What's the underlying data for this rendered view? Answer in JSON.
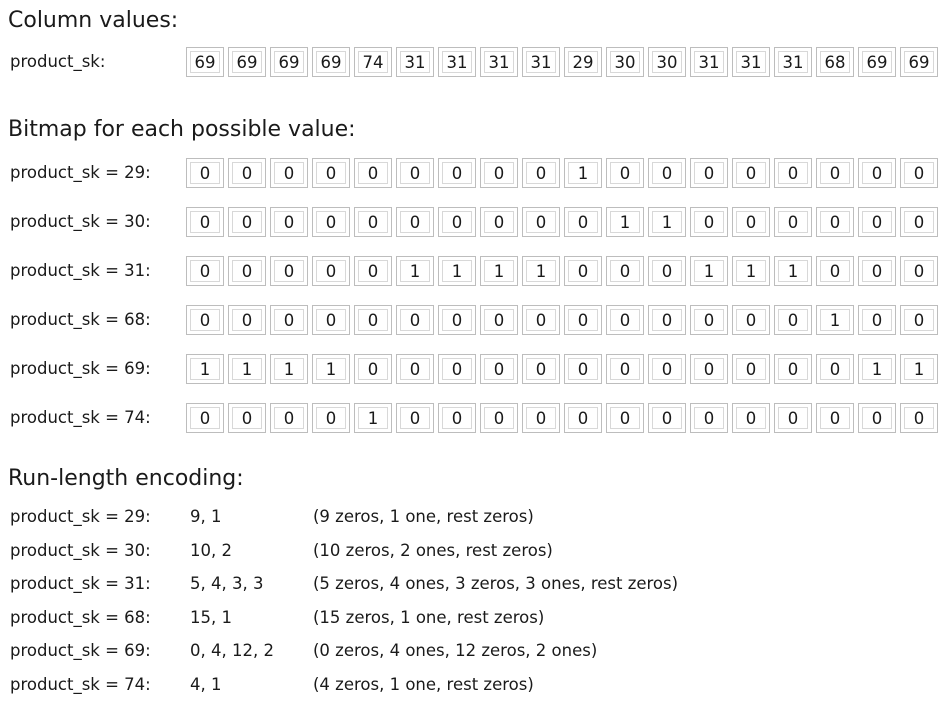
{
  "column_section": {
    "title": "Column values:",
    "label": "product_sk:",
    "values": [
      "69",
      "69",
      "69",
      "69",
      "74",
      "31",
      "31",
      "31",
      "31",
      "29",
      "30",
      "30",
      "31",
      "31",
      "31",
      "68",
      "69",
      "69"
    ]
  },
  "bitmap_section": {
    "title": "Bitmap for each possible value:",
    "rows": [
      {
        "label": "product_sk = 29:",
        "bits": [
          "0",
          "0",
          "0",
          "0",
          "0",
          "0",
          "0",
          "0",
          "0",
          "1",
          "0",
          "0",
          "0",
          "0",
          "0",
          "0",
          "0",
          "0"
        ]
      },
      {
        "label": "product_sk = 30:",
        "bits": [
          "0",
          "0",
          "0",
          "0",
          "0",
          "0",
          "0",
          "0",
          "0",
          "0",
          "1",
          "1",
          "0",
          "0",
          "0",
          "0",
          "0",
          "0"
        ]
      },
      {
        "label": "product_sk = 31:",
        "bits": [
          "0",
          "0",
          "0",
          "0",
          "0",
          "1",
          "1",
          "1",
          "1",
          "0",
          "0",
          "0",
          "1",
          "1",
          "1",
          "0",
          "0",
          "0"
        ]
      },
      {
        "label": "product_sk = 68:",
        "bits": [
          "0",
          "0",
          "0",
          "0",
          "0",
          "0",
          "0",
          "0",
          "0",
          "0",
          "0",
          "0",
          "0",
          "0",
          "0",
          "1",
          "0",
          "0"
        ]
      },
      {
        "label": "product_sk = 69:",
        "bits": [
          "1",
          "1",
          "1",
          "1",
          "0",
          "0",
          "0",
          "0",
          "0",
          "0",
          "0",
          "0",
          "0",
          "0",
          "0",
          "0",
          "1",
          "1"
        ]
      },
      {
        "label": "product_sk = 74:",
        "bits": [
          "0",
          "0",
          "0",
          "0",
          "1",
          "0",
          "0",
          "0",
          "0",
          "0",
          "0",
          "0",
          "0",
          "0",
          "0",
          "0",
          "0",
          "0"
        ]
      }
    ]
  },
  "rle_section": {
    "title": "Run-length encoding:",
    "rows": [
      {
        "label": "product_sk = 29:",
        "runs": "9, 1",
        "note": "(9 zeros, 1 one, rest zeros)"
      },
      {
        "label": "product_sk = 30:",
        "runs": "10, 2",
        "note": "(10 zeros, 2 ones, rest zeros)"
      },
      {
        "label": "product_sk = 31:",
        "runs": "5, 4, 3, 3",
        "note": "(5 zeros, 4 ones, 3 zeros, 3 ones, rest zeros)"
      },
      {
        "label": "product_sk = 68:",
        "runs": "15, 1",
        "note": "(15 zeros, 1 one, rest zeros)"
      },
      {
        "label": "product_sk = 69:",
        "runs": "0, 4, 12, 2",
        "note": "(0 zeros, 4 ones, 12 zeros, 2 ones)"
      },
      {
        "label": "product_sk = 74:",
        "runs": "4, 1",
        "note": "(4 zeros, 1 one, rest zeros)"
      }
    ]
  }
}
